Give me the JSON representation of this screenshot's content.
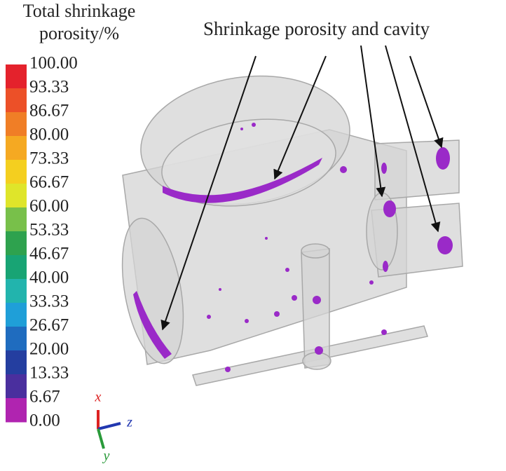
{
  "legend": {
    "title": [
      "Total shrinkage",
      "porosity/%"
    ],
    "labels": [
      "100.00",
      "93.33",
      "86.67",
      "80.00",
      "73.33",
      "66.67",
      "60.00",
      "53.33",
      "46.67",
      "40.00",
      "33.33",
      "26.67",
      "20.00",
      "13.33",
      "6.67",
      "0.00"
    ],
    "colors": [
      "#e4222c",
      "#ec5028",
      "#f07e26",
      "#f5a922",
      "#f4cf1f",
      "#dfe52a",
      "#78c04a",
      "#2ea24e",
      "#18a474",
      "#22b4ad",
      "#1f9fd8",
      "#1f6cbf",
      "#243ea0",
      "#4a2f9e",
      "#b024b0"
    ]
  },
  "annotation": "Shrinkage porosity and cavity",
  "axes": {
    "x": "x",
    "y": "y",
    "z": "z"
  }
}
